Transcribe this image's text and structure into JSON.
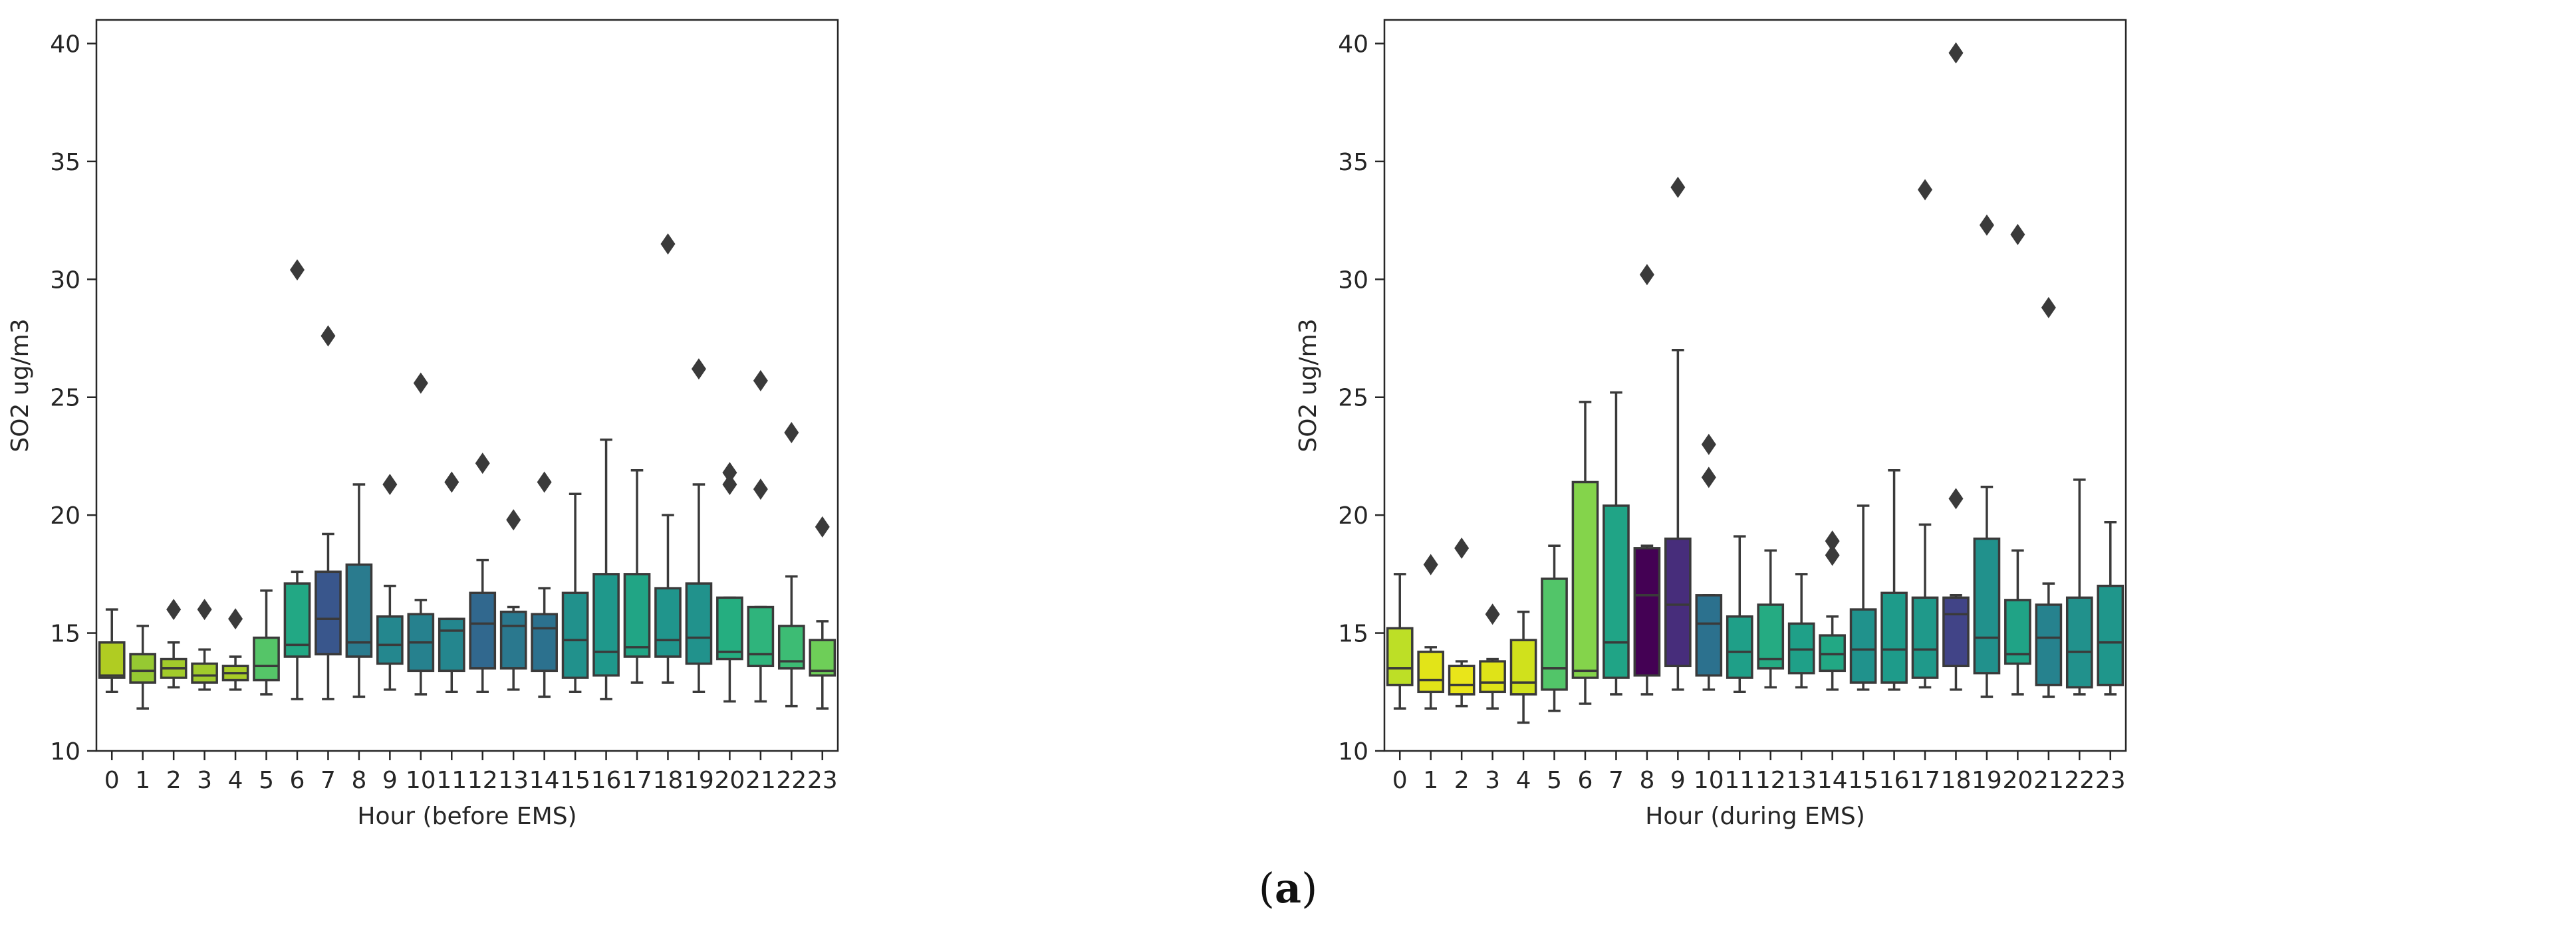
{
  "caption": {
    "open": "(",
    "letter": "a",
    "close": ")"
  },
  "chart_data": [
    {
      "type": "boxplot",
      "title": "",
      "xlabel": "Hour (before EMS)",
      "ylabel": "SO2 ug/m3",
      "ylim": [
        10,
        41
      ],
      "yticks": [
        10,
        15,
        20,
        25,
        30,
        35,
        40
      ],
      "categories": [
        "0",
        "1",
        "2",
        "3",
        "4",
        "5",
        "6",
        "7",
        "8",
        "9",
        "10",
        "11",
        "12",
        "13",
        "14",
        "15",
        "16",
        "17",
        "18",
        "19",
        "20",
        "21",
        "22",
        "23"
      ],
      "colors": [
        "#b0cc22",
        "#96c932",
        "#a2cb2b",
        "#a0cb2c",
        "#a8cc27",
        "#55c568",
        "#22a884",
        "#39568c",
        "#2a7b8e",
        "#24878e",
        "#26818e",
        "#24868e",
        "#31688e",
        "#2a788e",
        "#2c718e",
        "#21918c",
        "#1f988b",
        "#21a585",
        "#20958c",
        "#21928c",
        "#25ae80",
        "#2fb47c",
        "#3dbc74",
        "#6ece58"
      ],
      "boxes": [
        {
          "whislo": 12.5,
          "q1": 13.1,
          "med": 13.2,
          "q3": 14.6,
          "whishi": 16.0,
          "fliers": []
        },
        {
          "whislo": 11.8,
          "q1": 12.9,
          "med": 13.4,
          "q3": 14.1,
          "whishi": 15.3,
          "fliers": []
        },
        {
          "whislo": 12.7,
          "q1": 13.1,
          "med": 13.5,
          "q3": 13.9,
          "whishi": 14.6,
          "fliers": [
            16.0
          ]
        },
        {
          "whislo": 12.6,
          "q1": 12.9,
          "med": 13.2,
          "q3": 13.7,
          "whishi": 14.3,
          "fliers": [
            16.0
          ]
        },
        {
          "whislo": 12.6,
          "q1": 13.0,
          "med": 13.3,
          "q3": 13.6,
          "whishi": 14.0,
          "fliers": [
            15.6
          ]
        },
        {
          "whislo": 12.4,
          "q1": 13.0,
          "med": 13.6,
          "q3": 14.8,
          "whishi": 16.8,
          "fliers": []
        },
        {
          "whislo": 12.2,
          "q1": 14.0,
          "med": 14.5,
          "q3": 17.1,
          "whishi": 17.6,
          "fliers": [
            30.4
          ]
        },
        {
          "whislo": 12.2,
          "q1": 14.1,
          "med": 15.6,
          "q3": 17.6,
          "whishi": 19.2,
          "fliers": [
            27.6
          ]
        },
        {
          "whislo": 12.3,
          "q1": 14.0,
          "med": 14.6,
          "q3": 17.9,
          "whishi": 21.3,
          "fliers": []
        },
        {
          "whislo": 12.6,
          "q1": 13.7,
          "med": 14.5,
          "q3": 15.7,
          "whishi": 17.0,
          "fliers": [
            21.3
          ]
        },
        {
          "whislo": 12.4,
          "q1": 13.4,
          "med": 14.6,
          "q3": 15.8,
          "whishi": 16.4,
          "fliers": [
            25.6
          ]
        },
        {
          "whislo": 12.5,
          "q1": 13.4,
          "med": 15.1,
          "q3": 15.6,
          "whishi": 15.6,
          "fliers": [
            21.4
          ]
        },
        {
          "whislo": 12.5,
          "q1": 13.5,
          "med": 15.4,
          "q3": 16.7,
          "whishi": 18.1,
          "fliers": [
            22.2
          ]
        },
        {
          "whislo": 12.6,
          "q1": 13.5,
          "med": 15.3,
          "q3": 15.9,
          "whishi": 16.1,
          "fliers": [
            19.8
          ]
        },
        {
          "whislo": 12.3,
          "q1": 13.4,
          "med": 15.2,
          "q3": 15.8,
          "whishi": 16.9,
          "fliers": [
            21.4
          ]
        },
        {
          "whislo": 12.5,
          "q1": 13.1,
          "med": 14.7,
          "q3": 16.7,
          "whishi": 20.9,
          "fliers": []
        },
        {
          "whislo": 12.2,
          "q1": 13.2,
          "med": 14.2,
          "q3": 17.5,
          "whishi": 23.2,
          "fliers": []
        },
        {
          "whislo": 12.9,
          "q1": 14.0,
          "med": 14.4,
          "q3": 17.5,
          "whishi": 21.9,
          "fliers": []
        },
        {
          "whislo": 12.9,
          "q1": 14.0,
          "med": 14.7,
          "q3": 16.9,
          "whishi": 20.0,
          "fliers": [
            31.5
          ]
        },
        {
          "whislo": 12.5,
          "q1": 13.7,
          "med": 14.8,
          "q3": 17.1,
          "whishi": 21.3,
          "fliers": [
            26.2
          ]
        },
        {
          "whislo": 12.1,
          "q1": 13.9,
          "med": 14.2,
          "q3": 16.5,
          "whishi": 16.5,
          "fliers": [
            21.3,
            21.8
          ]
        },
        {
          "whislo": 12.1,
          "q1": 13.6,
          "med": 14.1,
          "q3": 16.1,
          "whishi": 16.1,
          "fliers": [
            21.1,
            25.7
          ]
        },
        {
          "whislo": 11.9,
          "q1": 13.5,
          "med": 13.8,
          "q3": 15.3,
          "whishi": 17.4,
          "fliers": [
            23.5
          ]
        },
        {
          "whislo": 11.8,
          "q1": 13.2,
          "med": 13.4,
          "q3": 14.7,
          "whishi": 15.5,
          "fliers": [
            19.5
          ]
        }
      ]
    },
    {
      "type": "boxplot",
      "title": "",
      "xlabel": "Hour (during EMS)",
      "ylabel": "SO2 ug/m3",
      "ylim": [
        10,
        41
      ],
      "yticks": [
        10,
        15,
        20,
        25,
        30,
        35,
        40
      ],
      "categories": [
        "0",
        "1",
        "2",
        "3",
        "4",
        "5",
        "6",
        "7",
        "8",
        "9",
        "10",
        "11",
        "12",
        "13",
        "14",
        "15",
        "16",
        "17",
        "18",
        "19",
        "20",
        "21",
        "22",
        "23"
      ],
      "colors": [
        "#bddf26",
        "#e2e418",
        "#e9e51a",
        "#dfe318",
        "#d0e11c",
        "#52c569",
        "#84d44b",
        "#20a486",
        "#440154",
        "#472d7b",
        "#2c718e",
        "#1f9f88",
        "#25ab82",
        "#1fa088",
        "#22a884",
        "#20928c",
        "#1e9b8a",
        "#1f998a",
        "#414487",
        "#21918c",
        "#20a386",
        "#26828e",
        "#21918c",
        "#1f968b"
      ],
      "boxes": [
        {
          "whislo": 11.8,
          "q1": 12.8,
          "med": 13.5,
          "q3": 15.2,
          "whishi": 17.5,
          "fliers": []
        },
        {
          "whislo": 11.8,
          "q1": 12.5,
          "med": 13.0,
          "q3": 14.2,
          "whishi": 14.4,
          "fliers": [
            17.9
          ]
        },
        {
          "whislo": 11.9,
          "q1": 12.4,
          "med": 12.8,
          "q3": 13.6,
          "whishi": 13.8,
          "fliers": [
            18.6
          ]
        },
        {
          "whislo": 11.8,
          "q1": 12.5,
          "med": 12.9,
          "q3": 13.8,
          "whishi": 13.9,
          "fliers": [
            15.8
          ]
        },
        {
          "whislo": 11.2,
          "q1": 12.4,
          "med": 12.9,
          "q3": 14.7,
          "whishi": 15.9,
          "fliers": []
        },
        {
          "whislo": 11.7,
          "q1": 12.6,
          "med": 13.5,
          "q3": 17.3,
          "whishi": 18.7,
          "fliers": []
        },
        {
          "whislo": 12.0,
          "q1": 13.1,
          "med": 13.4,
          "q3": 21.4,
          "whishi": 24.8,
          "fliers": []
        },
        {
          "whislo": 12.4,
          "q1": 13.1,
          "med": 14.6,
          "q3": 20.4,
          "whishi": 25.2,
          "fliers": []
        },
        {
          "whislo": 12.4,
          "q1": 13.2,
          "med": 16.6,
          "q3": 18.6,
          "whishi": 18.7,
          "fliers": [
            30.2
          ]
        },
        {
          "whislo": 12.6,
          "q1": 13.6,
          "med": 16.2,
          "q3": 19.0,
          "whishi": 27.0,
          "fliers": [
            33.9
          ]
        },
        {
          "whislo": 12.6,
          "q1": 13.2,
          "med": 15.4,
          "q3": 16.6,
          "whishi": 16.6,
          "fliers": [
            21.6,
            23.0
          ]
        },
        {
          "whislo": 12.5,
          "q1": 13.1,
          "med": 14.2,
          "q3": 15.7,
          "whishi": 19.1,
          "fliers": []
        },
        {
          "whislo": 12.7,
          "q1": 13.5,
          "med": 13.9,
          "q3": 16.2,
          "whishi": 18.5,
          "fliers": []
        },
        {
          "whislo": 12.7,
          "q1": 13.3,
          "med": 14.3,
          "q3": 15.4,
          "whishi": 17.5,
          "fliers": []
        },
        {
          "whislo": 12.6,
          "q1": 13.4,
          "med": 14.1,
          "q3": 14.9,
          "whishi": 15.7,
          "fliers": [
            18.3,
            18.9
          ]
        },
        {
          "whislo": 12.6,
          "q1": 12.9,
          "med": 14.3,
          "q3": 16.0,
          "whishi": 20.4,
          "fliers": []
        },
        {
          "whislo": 12.6,
          "q1": 12.9,
          "med": 14.3,
          "q3": 16.7,
          "whishi": 21.9,
          "fliers": []
        },
        {
          "whislo": 12.7,
          "q1": 13.1,
          "med": 14.3,
          "q3": 16.5,
          "whishi": 19.6,
          "fliers": [
            33.8
          ]
        },
        {
          "whislo": 12.6,
          "q1": 13.6,
          "med": 15.8,
          "q3": 16.5,
          "whishi": 16.6,
          "fliers": [
            20.7,
            39.6
          ]
        },
        {
          "whislo": 12.3,
          "q1": 13.3,
          "med": 14.8,
          "q3": 19.0,
          "whishi": 21.2,
          "fliers": [
            32.3
          ]
        },
        {
          "whislo": 12.4,
          "q1": 13.7,
          "med": 14.1,
          "q3": 16.4,
          "whishi": 18.5,
          "fliers": [
            31.9
          ]
        },
        {
          "whislo": 12.3,
          "q1": 12.8,
          "med": 14.8,
          "q3": 16.2,
          "whishi": 17.1,
          "fliers": [
            28.8
          ]
        },
        {
          "whislo": 12.4,
          "q1": 12.7,
          "med": 14.2,
          "q3": 16.5,
          "whishi": 21.5,
          "fliers": []
        },
        {
          "whislo": 12.4,
          "q1": 12.8,
          "med": 14.6,
          "q3": 17.0,
          "whishi": 19.7,
          "fliers": []
        }
      ]
    }
  ]
}
